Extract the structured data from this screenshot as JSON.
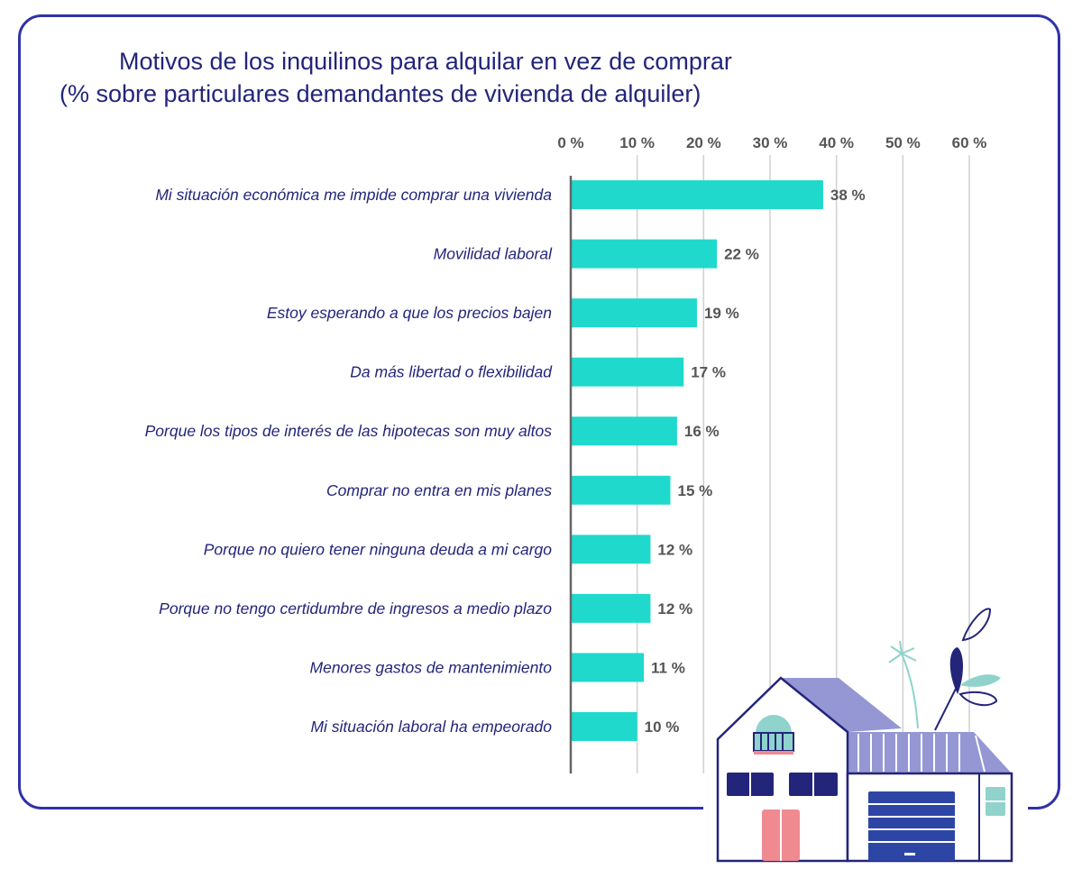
{
  "chart_data": {
    "type": "bar",
    "orientation": "horizontal",
    "title": "Motivos de los inquilinos para alquilar en vez de comprar",
    "subtitle": "(% sobre particulares demandantes de vivienda de alquiler)",
    "categories": [
      "Mi situación económica me impide comprar una vivienda",
      "Movilidad laboral",
      "Estoy esperando a que los precios bajen",
      "Da más libertad o flexibilidad",
      "Porque los tipos de interés de las hipotecas son muy altos",
      "Comprar no entra en mis planes",
      "Porque no quiero tener ninguna deuda a mi cargo",
      "Porque no tengo certidumbre de ingresos a medio plazo",
      "Menores gastos de mantenimiento",
      "Mi situación laboral ha empeorado"
    ],
    "values": [
      38,
      22,
      19,
      17,
      16,
      15,
      12,
      12,
      11,
      10
    ],
    "value_labels": [
      "38 %",
      "22 %",
      "19 %",
      "17 %",
      "16 %",
      "15 %",
      "12 %",
      "12 %",
      "11 %",
      "10 %"
    ],
    "xlim": [
      0,
      60
    ],
    "xticks": [
      0,
      10,
      20,
      30,
      40,
      50,
      60
    ],
    "xtick_labels": [
      "0 %",
      "10 %",
      "20 %",
      "30 %",
      "40 %",
      "50 %",
      "60 %"
    ],
    "xaxis_position": "top",
    "grid": true,
    "legend": "none",
    "colors": {
      "bar": "#1fd9cc",
      "title": "#23257a",
      "frame": "#2f32a8",
      "grid": "#d0d0d0"
    }
  },
  "illustration": "house-illustration"
}
